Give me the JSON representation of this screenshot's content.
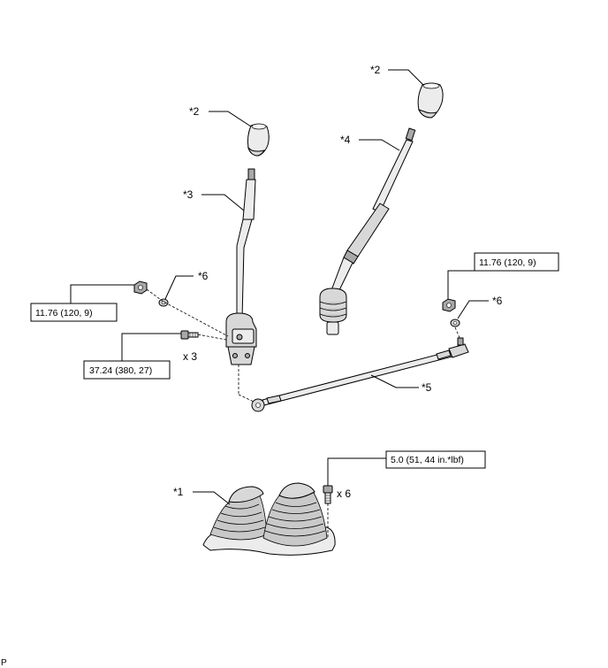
{
  "labels": {
    "knob_top_right": "*2",
    "knob_left": "*2",
    "lever_right": "*4",
    "lever_left": "*3",
    "washer_left": "*6",
    "washer_right": "*6",
    "rod": "*5",
    "boot": "*1"
  },
  "torque_specs": {
    "nut_left": "11.76 (120, 9)",
    "bolt_left": "37.24 (380, 27)",
    "nut_right": "11.76 (120, 9)",
    "boot_bolt": "5.0 (51, 44 in.*lbf)"
  },
  "quantities": {
    "bolt_left": "x 3",
    "boot_bolt": "x 6"
  },
  "page_marker": "P"
}
